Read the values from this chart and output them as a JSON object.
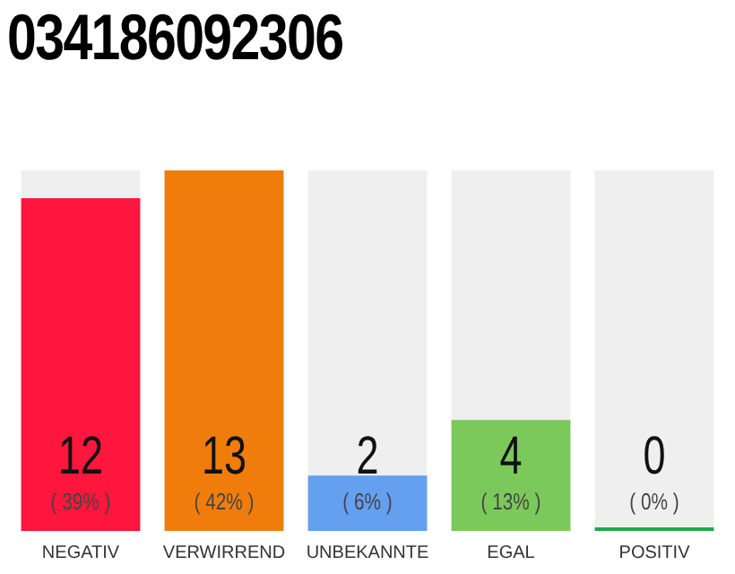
{
  "chart_data": {
    "type": "bar",
    "title": "034186092306",
    "categories": [
      "NEGATIV",
      "VERWIRREND",
      "UNBEKANNTE",
      "EGAL",
      "POSITIV"
    ],
    "values": [
      12,
      13,
      2,
      4,
      0
    ],
    "colors": [
      "#ff163c",
      "#f07d0b",
      "#659ff0",
      "#7cc95b",
      "#25a749"
    ],
    "annotations": [
      "( 39% )",
      "( 42% )",
      "( 6% )",
      "( 13% )",
      "( 0% )"
    ],
    "data_labels": true,
    "grid": false,
    "legend": false
  }
}
